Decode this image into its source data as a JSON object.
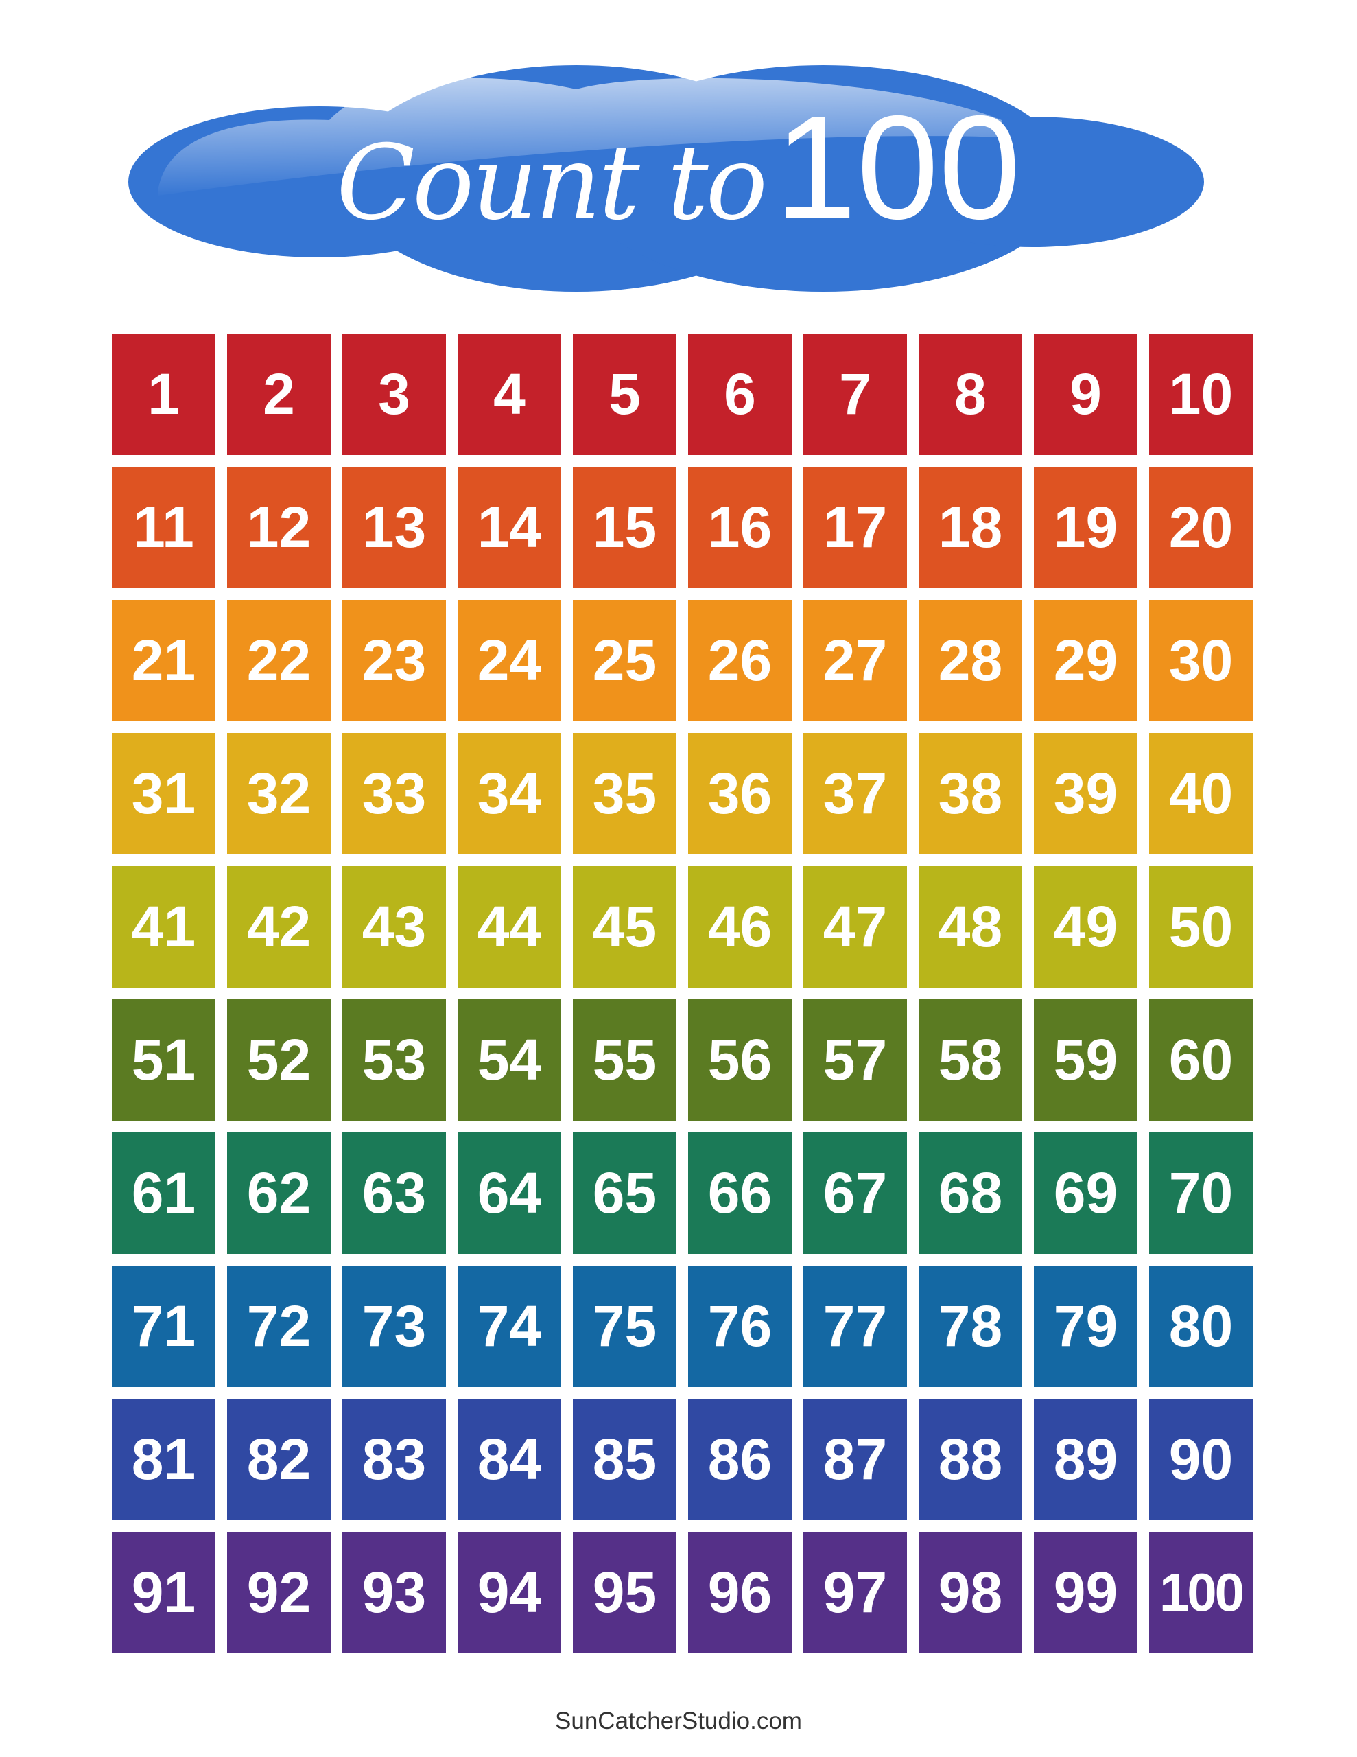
{
  "title": {
    "script": "Count to",
    "number": "100"
  },
  "cloud_color": "#3575D3",
  "row_colors": [
    "#C4212A",
    "#DE5322",
    "#F0921B",
    "#E0AE1C",
    "#B8B51A",
    "#5B7B22",
    "#1B7A57",
    "#1468A3",
    "#3049A3",
    "#553088"
  ],
  "numbers_start": 1,
  "numbers_end": 100,
  "columns": 10,
  "footer": "SunCatcherStudio.com"
}
